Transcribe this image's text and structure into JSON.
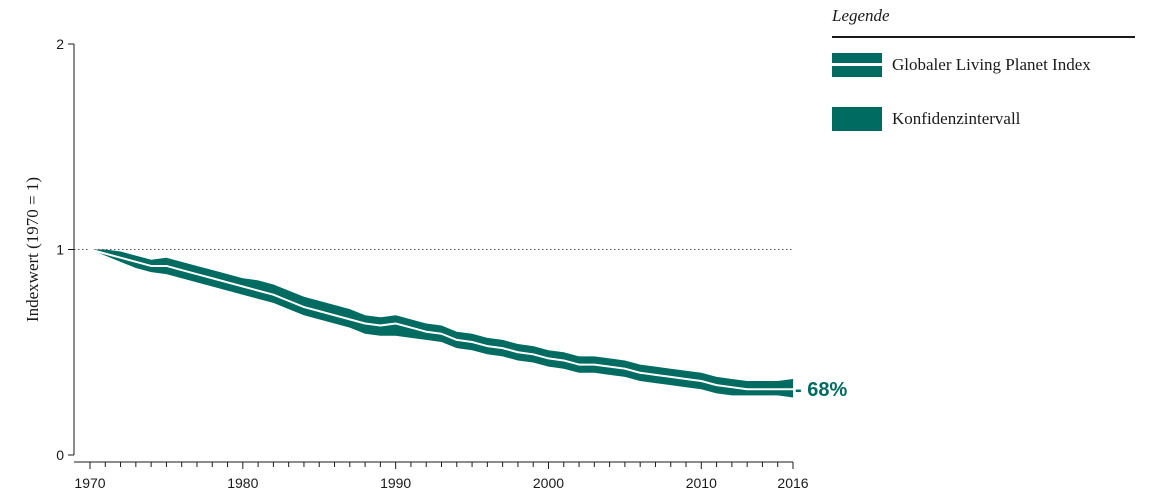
{
  "chart_data": {
    "type": "area",
    "ylabel": "Indexwert (1970 = 1)",
    "xlabel": "",
    "xlim": [
      1970,
      2016
    ],
    "ylim": [
      0,
      2
    ],
    "x_ticks": [
      1970,
      1980,
      1990,
      2000,
      2010,
      2016
    ],
    "y_ticks": [
      0,
      1,
      2
    ],
    "reference_line": 1,
    "grid": false,
    "legend_position": "top-right",
    "series_color": "#006b60",
    "index_line_color": "#ffffff",
    "x": [
      1970,
      1971,
      1972,
      1973,
      1974,
      1975,
      1976,
      1977,
      1978,
      1979,
      1980,
      1981,
      1982,
      1983,
      1984,
      1985,
      1986,
      1987,
      1988,
      1989,
      1990,
      1991,
      1992,
      1993,
      1994,
      1995,
      1996,
      1997,
      1998,
      1999,
      2000,
      2001,
      2002,
      2003,
      2004,
      2005,
      2006,
      2007,
      2008,
      2009,
      2010,
      2011,
      2012,
      2013,
      2014,
      2015,
      2016
    ],
    "series": [
      {
        "name": "Globaler Living Planet Index",
        "role": "index",
        "values": [
          1.0,
          0.98,
          0.96,
          0.94,
          0.92,
          0.92,
          0.9,
          0.88,
          0.86,
          0.84,
          0.82,
          0.8,
          0.78,
          0.75,
          0.72,
          0.7,
          0.68,
          0.66,
          0.64,
          0.63,
          0.64,
          0.62,
          0.6,
          0.59,
          0.56,
          0.55,
          0.53,
          0.52,
          0.5,
          0.49,
          0.47,
          0.46,
          0.44,
          0.44,
          0.43,
          0.42,
          0.4,
          0.39,
          0.38,
          0.37,
          0.36,
          0.34,
          0.33,
          0.32,
          0.32,
          0.32,
          0.32
        ]
      },
      {
        "name": "Konfidenzintervall",
        "role": "ci_upper",
        "values": [
          1.0,
          1.0,
          0.99,
          0.97,
          0.95,
          0.96,
          0.94,
          0.92,
          0.9,
          0.88,
          0.86,
          0.85,
          0.83,
          0.8,
          0.77,
          0.75,
          0.73,
          0.71,
          0.68,
          0.67,
          0.68,
          0.66,
          0.64,
          0.63,
          0.6,
          0.59,
          0.57,
          0.56,
          0.54,
          0.53,
          0.51,
          0.5,
          0.48,
          0.48,
          0.47,
          0.46,
          0.44,
          0.43,
          0.42,
          0.41,
          0.4,
          0.38,
          0.37,
          0.36,
          0.36,
          0.36,
          0.37
        ]
      },
      {
        "name": "Konfidenzintervall",
        "role": "ci_lower",
        "values": [
          1.0,
          0.97,
          0.94,
          0.91,
          0.89,
          0.88,
          0.86,
          0.84,
          0.82,
          0.8,
          0.78,
          0.76,
          0.74,
          0.71,
          0.68,
          0.66,
          0.64,
          0.62,
          0.59,
          0.58,
          0.58,
          0.57,
          0.56,
          0.55,
          0.52,
          0.51,
          0.49,
          0.48,
          0.46,
          0.45,
          0.43,
          0.42,
          0.4,
          0.4,
          0.39,
          0.38,
          0.36,
          0.35,
          0.34,
          0.33,
          0.32,
          0.3,
          0.29,
          0.29,
          0.29,
          0.29,
          0.28
        ]
      }
    ],
    "change_label": "- 68%"
  },
  "legend": {
    "title": "Legende",
    "items": [
      {
        "label": "Globaler Living Planet Index",
        "type": "index"
      },
      {
        "label": "Konfidenzintervall",
        "type": "ci"
      }
    ]
  }
}
